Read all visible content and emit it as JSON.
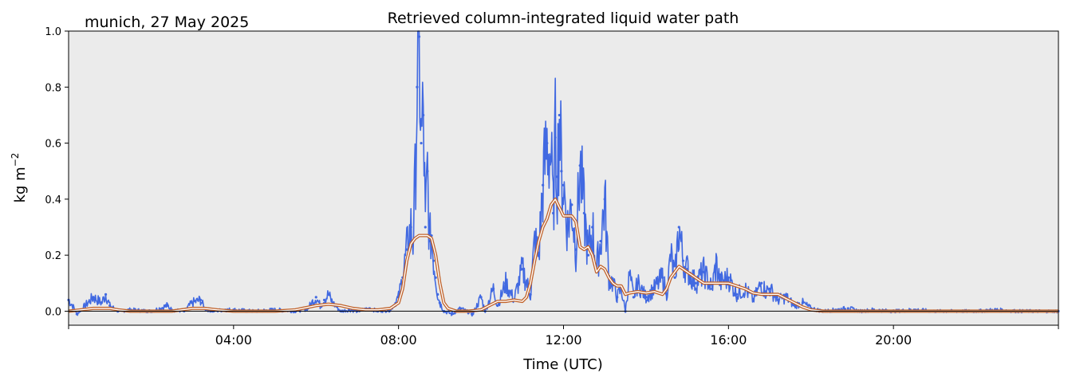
{
  "chart_data": {
    "type": "line",
    "title": "Retrieved column-integrated liquid water path",
    "subtitle": "munich, 27 May 2025",
    "xlabel": "Time (UTC)",
    "ylabel": "kg m",
    "ylabel_superscript": "−2",
    "xlim_hours": [
      0,
      24
    ],
    "ylim": [
      -0.05,
      1.0
    ],
    "y_ticks": [
      0.0,
      0.2,
      0.4,
      0.6,
      0.8,
      1.0
    ],
    "y_tick_labels": [
      "0.0",
      "0.2",
      "0.4",
      "0.6",
      "0.8",
      "1.0"
    ],
    "x_ticks_hours": [
      4,
      8,
      12,
      16,
      20
    ],
    "x_tick_labels": [
      "04:00",
      "08:00",
      "12:00",
      "16:00",
      "20:00"
    ],
    "grid": false,
    "legend": "none",
    "colors": {
      "background": "#ebebeb",
      "raw": "#4169e1",
      "smooth_outer": "#c0622a",
      "smooth_inner": "#ffffff",
      "zero_line": "#000000"
    },
    "series": [
      {
        "kind": "raw-scatter",
        "x_hours": [
          0.0,
          0.1,
          0.2,
          0.4,
          0.6,
          0.8,
          0.9,
          1.0,
          1.2,
          1.5,
          2.0,
          2.4,
          2.5,
          2.8,
          3.0,
          3.2,
          3.3,
          3.5,
          3.8,
          4.0,
          4.5,
          5.0,
          5.5,
          5.8,
          6.0,
          6.1,
          6.2,
          6.3,
          6.4,
          6.6,
          6.8,
          7.0,
          7.3,
          7.5,
          7.8,
          8.0,
          8.1,
          8.2,
          8.3,
          8.35,
          8.4,
          8.45,
          8.5,
          8.55,
          8.6,
          8.65,
          8.7,
          8.75,
          8.8,
          8.85,
          8.9,
          8.95,
          9.0,
          9.1,
          9.3,
          9.5,
          9.8,
          10.0,
          10.1,
          10.3,
          10.4,
          10.6,
          10.8,
          11.0,
          11.2,
          11.3,
          11.4,
          11.5,
          11.6,
          11.7,
          11.75,
          11.8,
          11.85,
          11.9,
          11.95,
          12.0,
          12.1,
          12.2,
          12.3,
          12.4,
          12.5,
          12.6,
          12.7,
          12.8,
          12.9,
          13.0,
          13.1,
          13.2,
          13.3,
          13.4,
          13.5,
          13.6,
          13.7,
          13.8,
          14.0,
          14.2,
          14.4,
          14.5,
          14.6,
          14.7,
          14.8,
          14.9,
          15.0,
          15.2,
          15.4,
          15.6,
          15.7,
          15.8,
          16.0,
          16.2,
          16.4,
          16.6,
          16.8,
          16.9,
          17.0,
          17.2,
          17.4,
          17.6,
          17.8,
          18.0,
          18.3,
          18.6,
          18.9,
          19.2,
          19.5,
          20.0,
          20.5,
          21.0,
          21.5,
          22.0,
          22.5,
          23.0,
          23.5,
          24.0
        ],
        "values": [
          0.04,
          0.02,
          -0.01,
          0.02,
          0.05,
          0.03,
          0.06,
          0.02,
          0.0,
          0.005,
          0.0,
          0.02,
          0.005,
          0.0,
          0.03,
          0.04,
          0.01,
          0.0,
          0.005,
          0.005,
          0.0,
          0.005,
          0.0,
          0.01,
          0.05,
          0.02,
          0.04,
          0.06,
          0.03,
          0.0,
          0.005,
          0.0,
          0.01,
          0.0,
          0.005,
          0.05,
          0.12,
          0.22,
          0.3,
          0.25,
          0.45,
          0.8,
          0.98,
          0.6,
          0.7,
          0.3,
          0.5,
          0.25,
          0.27,
          0.18,
          0.12,
          0.06,
          0.03,
          0.0,
          -0.01,
          0.01,
          -0.01,
          0.05,
          0.0,
          0.08,
          0.02,
          0.1,
          0.04,
          0.15,
          0.06,
          0.25,
          0.2,
          0.45,
          0.6,
          0.55,
          0.35,
          0.62,
          0.48,
          0.7,
          0.5,
          0.45,
          0.3,
          0.38,
          0.22,
          0.52,
          0.35,
          0.2,
          0.3,
          0.15,
          0.25,
          0.4,
          0.12,
          0.1,
          0.05,
          0.08,
          0.0,
          0.13,
          0.05,
          0.1,
          0.05,
          0.08,
          0.12,
          0.06,
          0.2,
          0.12,
          0.3,
          0.18,
          0.15,
          0.1,
          0.14,
          0.08,
          0.17,
          0.1,
          0.12,
          0.06,
          0.08,
          0.04,
          0.1,
          0.07,
          0.08,
          0.04,
          0.05,
          0.02,
          0.03,
          0.01,
          0.0,
          0.005,
          0.01,
          0.0,
          0.005,
          0.0,
          0.005,
          0.0,
          0.0,
          0.0,
          0.005,
          0.0,
          0.0,
          0.0
        ]
      },
      {
        "kind": "smoothed-line",
        "x_hours": [
          0.0,
          0.3,
          0.6,
          1.0,
          1.2,
          1.5,
          2.0,
          2.5,
          3.0,
          3.3,
          3.6,
          4.0,
          4.5,
          5.0,
          5.5,
          6.0,
          6.3,
          6.6,
          6.9,
          7.2,
          7.5,
          7.8,
          8.0,
          8.1,
          8.2,
          8.3,
          8.4,
          8.5,
          8.6,
          8.7,
          8.8,
          8.9,
          9.0,
          9.1,
          9.2,
          9.4,
          9.7,
          10.0,
          10.2,
          10.4,
          10.6,
          10.8,
          11.0,
          11.1,
          11.2,
          11.3,
          11.4,
          11.5,
          11.6,
          11.7,
          11.8,
          11.9,
          12.0,
          12.1,
          12.2,
          12.3,
          12.4,
          12.5,
          12.6,
          12.7,
          12.8,
          12.9,
          13.0,
          13.1,
          13.2,
          13.3,
          13.4,
          13.5,
          13.6,
          13.8,
          14.0,
          14.2,
          14.4,
          14.5,
          14.6,
          14.7,
          14.8,
          14.9,
          15.0,
          15.2,
          15.4,
          15.6,
          15.8,
          16.0,
          16.2,
          16.4,
          16.6,
          16.8,
          17.0,
          17.2,
          17.4,
          17.6,
          17.8,
          18.0,
          18.3,
          18.6,
          19.0,
          19.5,
          20.0,
          21.0,
          22.0,
          23.0,
          24.0
        ],
        "values": [
          0.0,
          0.005,
          0.01,
          0.01,
          0.005,
          0.0,
          0.0,
          0.0,
          0.01,
          0.01,
          0.005,
          0.0,
          0.0,
          0.0,
          0.005,
          0.02,
          0.025,
          0.02,
          0.01,
          0.005,
          0.005,
          0.01,
          0.03,
          0.08,
          0.18,
          0.24,
          0.26,
          0.27,
          0.27,
          0.27,
          0.26,
          0.2,
          0.1,
          0.03,
          0.01,
          0.0,
          0.0,
          0.005,
          0.02,
          0.035,
          0.035,
          0.04,
          0.035,
          0.05,
          0.1,
          0.18,
          0.25,
          0.3,
          0.33,
          0.38,
          0.4,
          0.37,
          0.34,
          0.34,
          0.34,
          0.32,
          0.23,
          0.22,
          0.23,
          0.2,
          0.14,
          0.16,
          0.15,
          0.12,
          0.1,
          0.09,
          0.09,
          0.06,
          0.065,
          0.07,
          0.065,
          0.07,
          0.06,
          0.08,
          0.12,
          0.14,
          0.16,
          0.15,
          0.14,
          0.12,
          0.1,
          0.1,
          0.1,
          0.1,
          0.09,
          0.08,
          0.065,
          0.06,
          0.06,
          0.06,
          0.045,
          0.03,
          0.015,
          0.005,
          0.0,
          0.0,
          0.0,
          0.0,
          0.0,
          0.0,
          0.0,
          0.0,
          0.0
        ]
      }
    ]
  }
}
